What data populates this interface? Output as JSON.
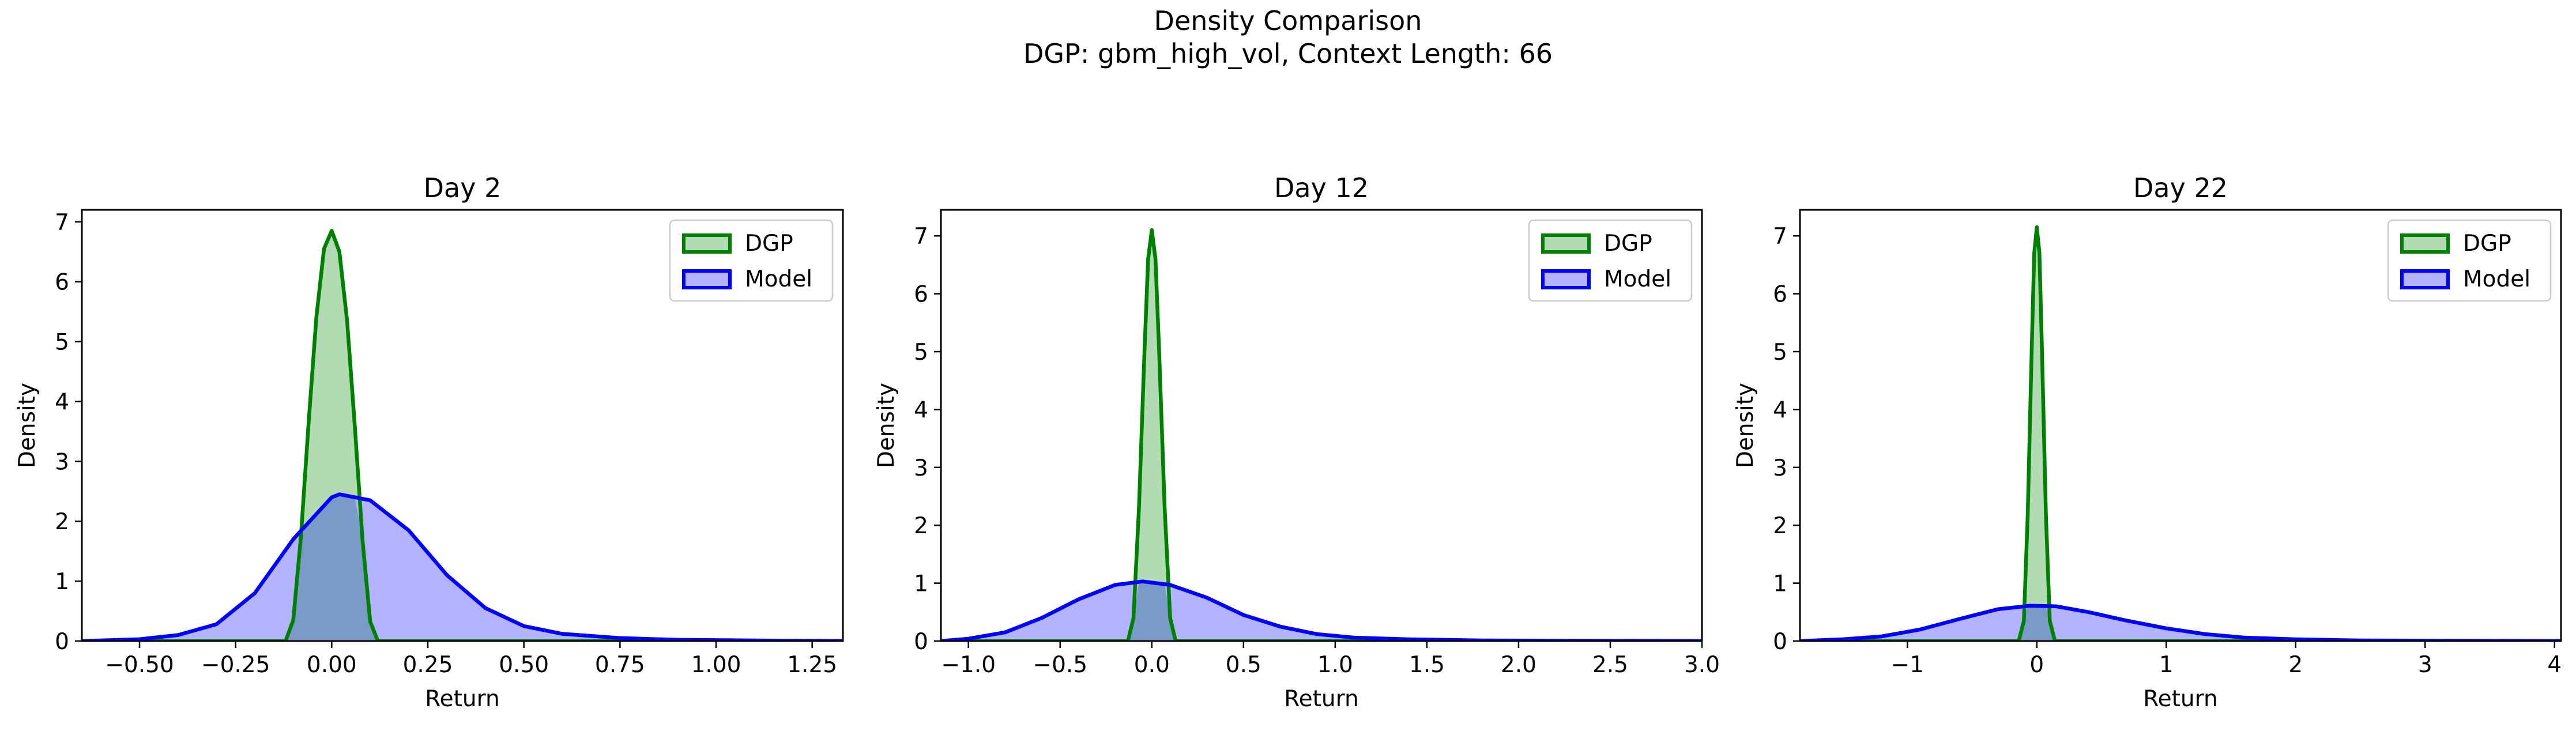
{
  "figure": {
    "title": "Density Comparison",
    "subtitle": "DGP: gbm_high_vol, Context Length: 66",
    "colors": {
      "dgp_line": "#008000",
      "dgp_fill": "#b3dbb3",
      "model_line": "#0000ff",
      "model_fill": "#b3b3ff",
      "overlap_fill": "#7a9ac8",
      "axes_edge": "#000000",
      "legend_edge": "#cccccc"
    }
  },
  "chart_data": [
    {
      "type": "area",
      "title": "Day 2",
      "xlabel": "Return",
      "ylabel": "Density",
      "xlim": [
        -0.65,
        1.33
      ],
      "ylim": [
        0,
        7.2
      ],
      "xticks": [
        -0.5,
        -0.25,
        0.0,
        0.25,
        0.5,
        0.75,
        1.0,
        1.25
      ],
      "xtick_labels": [
        "−0.50",
        "−0.25",
        "0.00",
        "0.25",
        "0.50",
        "0.75",
        "1.00",
        "1.25"
      ],
      "yticks": [
        0,
        1,
        2,
        3,
        4,
        5,
        6,
        7
      ],
      "ytick_labels": [
        "0",
        "1",
        "2",
        "3",
        "4",
        "5",
        "6",
        "7"
      ],
      "legend": {
        "placement": "top-right",
        "entries": [
          "DGP",
          "Model"
        ]
      },
      "series": [
        {
          "name": "DGP",
          "x": [
            -0.65,
            -0.12,
            -0.1,
            -0.08,
            -0.06,
            -0.04,
            -0.02,
            0.0,
            0.02,
            0.04,
            0.06,
            0.08,
            0.1,
            0.12,
            1.33
          ],
          "y": [
            0.0,
            0.0,
            0.35,
            1.75,
            3.65,
            5.4,
            6.55,
            6.85,
            6.5,
            5.35,
            3.6,
            1.7,
            0.33,
            0.0,
            0.0
          ]
        },
        {
          "name": "Model",
          "x": [
            -0.65,
            -0.5,
            -0.4,
            -0.3,
            -0.2,
            -0.1,
            0.0,
            0.02,
            0.1,
            0.2,
            0.3,
            0.4,
            0.5,
            0.6,
            0.75,
            0.9,
            1.1,
            1.33
          ],
          "y": [
            0.0,
            0.03,
            0.1,
            0.28,
            0.8,
            1.7,
            2.4,
            2.45,
            2.35,
            1.85,
            1.1,
            0.55,
            0.25,
            0.12,
            0.05,
            0.02,
            0.01,
            0.0
          ]
        }
      ]
    },
    {
      "type": "area",
      "title": "Day 12",
      "xlabel": "Return",
      "ylabel": "Density",
      "xlim": [
        -1.15,
        3.0
      ],
      "ylim": [
        0,
        7.45
      ],
      "xticks": [
        -1.0,
        -0.5,
        0.0,
        0.5,
        1.0,
        1.5,
        2.0,
        2.5,
        3.0
      ],
      "xtick_labels": [
        "−1.0",
        "−0.5",
        "0.0",
        "0.5",
        "1.0",
        "1.5",
        "2.0",
        "2.5",
        "3.0"
      ],
      "yticks": [
        0,
        1,
        2,
        3,
        4,
        5,
        6,
        7
      ],
      "ytick_labels": [
        "0",
        "1",
        "2",
        "3",
        "4",
        "5",
        "6",
        "7"
      ],
      "legend": {
        "placement": "top-right",
        "entries": [
          "DGP",
          "Model"
        ]
      },
      "series": [
        {
          "name": "DGP",
          "x": [
            -1.15,
            -0.13,
            -0.1,
            -0.07,
            -0.04,
            -0.02,
            0.0,
            0.02,
            0.04,
            0.07,
            0.1,
            0.13,
            3.0
          ],
          "y": [
            0.0,
            0.0,
            0.4,
            2.3,
            5.0,
            6.6,
            7.1,
            6.6,
            5.0,
            2.3,
            0.4,
            0.0,
            0.0
          ]
        },
        {
          "name": "Model",
          "x": [
            -1.15,
            -1.0,
            -0.8,
            -0.6,
            -0.4,
            -0.2,
            -0.05,
            0.1,
            0.3,
            0.5,
            0.7,
            0.9,
            1.1,
            1.4,
            1.8,
            2.3,
            3.0
          ],
          "y": [
            0.0,
            0.04,
            0.15,
            0.4,
            0.72,
            0.97,
            1.03,
            0.97,
            0.75,
            0.45,
            0.25,
            0.12,
            0.06,
            0.03,
            0.01,
            0.005,
            0.0
          ]
        }
      ]
    },
    {
      "type": "area",
      "title": "Day 22",
      "xlabel": "Return",
      "ylabel": "Density",
      "xlim": [
        -1.83,
        4.05
      ],
      "ylim": [
        0,
        7.45
      ],
      "xticks": [
        -1,
        0,
        1,
        2,
        3,
        4
      ],
      "xtick_labels": [
        "−1",
        "0",
        "1",
        "2",
        "3",
        "4"
      ],
      "yticks": [
        0,
        1,
        2,
        3,
        4,
        5,
        6,
        7
      ],
      "ytick_labels": [
        "0",
        "1",
        "2",
        "3",
        "4",
        "5",
        "6",
        "7"
      ],
      "legend": {
        "placement": "top-right",
        "entries": [
          "DGP",
          "Model"
        ]
      },
      "series": [
        {
          "name": "DGP",
          "x": [
            -1.83,
            -0.14,
            -0.1,
            -0.07,
            -0.04,
            -0.02,
            0.0,
            0.02,
            0.04,
            0.07,
            0.1,
            0.14,
            4.05
          ],
          "y": [
            0.0,
            0.0,
            0.35,
            2.2,
            5.0,
            6.7,
            7.15,
            6.7,
            5.0,
            2.2,
            0.35,
            0.0,
            0.0
          ]
        },
        {
          "name": "Model",
          "x": [
            -1.83,
            -1.5,
            -1.2,
            -0.9,
            -0.6,
            -0.3,
            -0.05,
            0.15,
            0.4,
            0.7,
            1.0,
            1.3,
            1.6,
            2.0,
            2.5,
            3.2,
            4.05
          ],
          "y": [
            0.0,
            0.03,
            0.08,
            0.2,
            0.38,
            0.55,
            0.61,
            0.6,
            0.5,
            0.35,
            0.22,
            0.12,
            0.06,
            0.03,
            0.01,
            0.005,
            0.0
          ]
        }
      ]
    }
  ]
}
